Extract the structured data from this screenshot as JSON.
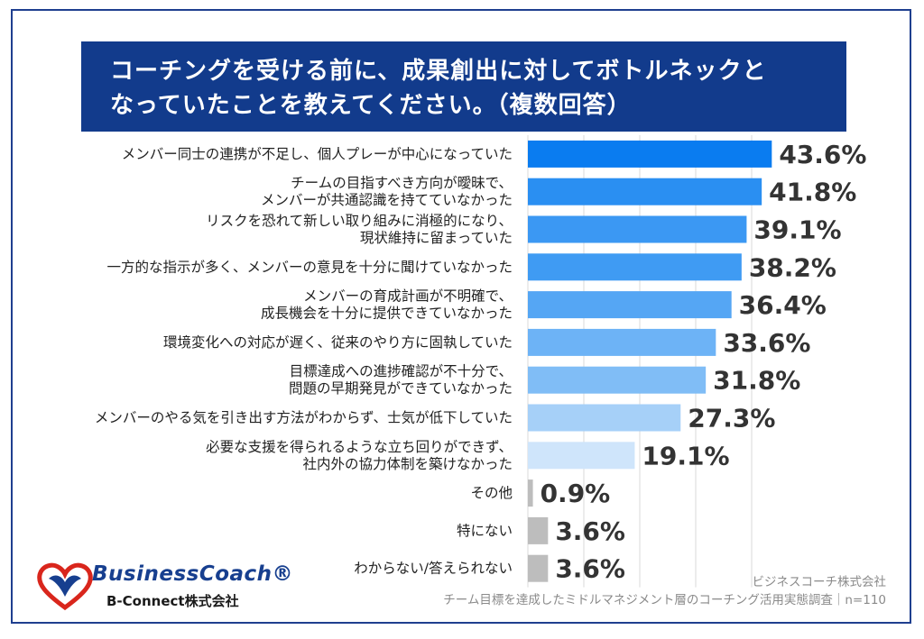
{
  "title": {
    "line1": "コーチングを受ける前に、成果創出に対してボトルネックと",
    "line2": "なっていたことを教えてください。（複数回答）"
  },
  "chart_data": {
    "type": "bar",
    "orientation": "horizontal",
    "unit": "%",
    "categories": [
      "メンバー同士の連携が不足し、個人プレーが中心になっていた",
      "チームの目指すべき方向が曖昧で、\nメンバーが共通認識を持てていなかった",
      "リスクを恐れて新しい取り組みに消極的になり、\n現状維持に留まっていた",
      "一方的な指示が多く、メンバーの意見を十分に聞けていなかった",
      "メンバーの育成計画が不明確で、\n成長機会を十分に提供できていなかった",
      "環境変化への対応が遅く、従来のやり方に固執していた",
      "目標達成への進捗確認が不十分で、\n問題の早期発見ができていなかった",
      "メンバーのやる気を引き出す方法がわからず、士気が低下していた",
      "必要な支援を得られるような立ち回りができず、\n社内外の協力体制を築けなかった",
      "その他",
      "特にない",
      "わからない/答えられない"
    ],
    "values": [
      43.6,
      41.8,
      39.1,
      38.2,
      36.4,
      33.6,
      31.8,
      27.3,
      19.1,
      0.9,
      3.6,
      3.6
    ],
    "value_labels": [
      "43.6%",
      "41.8%",
      "39.1%",
      "38.2%",
      "36.4%",
      "33.6%",
      "31.8%",
      "27.3%",
      "19.1%",
      "0.9%",
      "3.6%",
      "3.6%"
    ],
    "colors": [
      "#0a7cf0",
      "#2a8ff2",
      "#3b98f3",
      "#3f9bf3",
      "#55a6f4",
      "#6db3f6",
      "#80bdf6",
      "#a6d0f8",
      "#cfe5fb",
      "#bdbdbd",
      "#bdbdbd",
      "#bdbdbd"
    ],
    "xlim": [
      0,
      45
    ],
    "grid": true
  },
  "logo": {
    "brand": "BusinessCoach®",
    "sub": "B-Connect株式会社",
    "colors": {
      "brand": "#173f8f",
      "accent": "#d9261c"
    }
  },
  "source": {
    "line1": "ビジネスコーチ株式会社",
    "line2": "チーム目標を達成したミドルマネジメント層のコーチング活用実態調査｜n=110"
  }
}
